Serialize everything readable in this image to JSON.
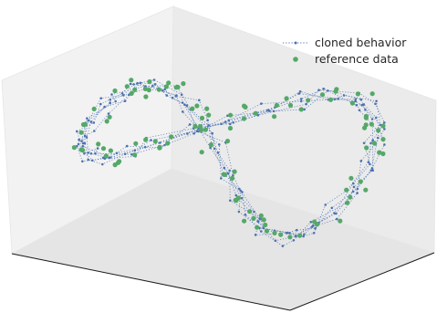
{
  "chart_data": {
    "type": "line",
    "projection": "3d",
    "title": "",
    "xlabel": "",
    "ylabel": "",
    "zlabel": "",
    "grid": false,
    "tick_labels": false,
    "legend_placement": "top-right",
    "xlim": [
      -3.5,
      3.5
    ],
    "ylim": [
      -1.6,
      1.6
    ],
    "zlim": [
      -1.5,
      1.5
    ],
    "series": [
      {
        "name": "cloned behavior",
        "style": "dotted-line-with-markers",
        "color": "#4c72b0",
        "loops": 6,
        "points_per_loop": 34,
        "points": []
      },
      {
        "name": "reference data",
        "style": "markers",
        "color": "#55a868",
        "points": []
      }
    ]
  }
}
